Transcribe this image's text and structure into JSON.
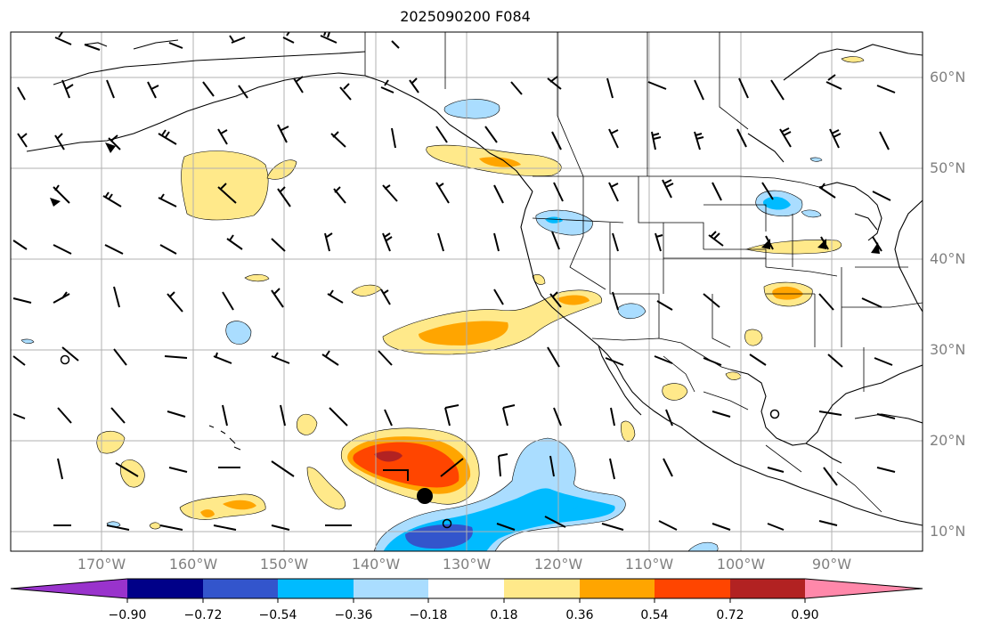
{
  "title": "2025090200 F084",
  "lat_labels": [
    "60°N",
    "50°N",
    "40°N",
    "30°N",
    "20°N",
    "10°N"
  ],
  "lon_labels": [
    "170°W",
    "160°W",
    "150°W",
    "140°W",
    "130°W",
    "120°W",
    "110°W",
    "100°W",
    "90°W"
  ],
  "colorbar": {
    "tick_labels": [
      "−0.90",
      "−0.72",
      "−0.54",
      "−0.36",
      "−0.18",
      "0.18",
      "0.36",
      "0.54",
      "0.72",
      "0.90"
    ],
    "colors": [
      "#9933cc",
      "#000088",
      "#3355cc",
      "#00bbff",
      "#aaddff",
      "#ffffff",
      "#ffe98a",
      "#ffa500",
      "#ff4500",
      "#b22222",
      "#ff88aa"
    ]
  },
  "markers": {
    "storm_center": "filled-circle",
    "open_circles": 3
  }
}
